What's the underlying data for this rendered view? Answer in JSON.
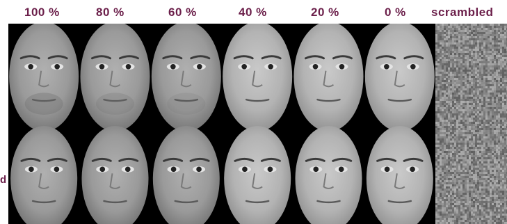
{
  "labels": {
    "l100": "100 %",
    "l80": "80 %",
    "l60": "60 %",
    "l40": "40 %",
    "l20": "20 %",
    "l0": "0 %",
    "scrambled": "scrambled",
    "side": "d"
  },
  "colors": {
    "label": "#6b1f4a",
    "background": "#000000",
    "face_dark": "#8f8f8f",
    "face_light": "#b4b4b4",
    "noise_base": "#8a8a8a"
  },
  "icons": {
    "face": "face-photo",
    "scrambled": "noise-patch"
  }
}
